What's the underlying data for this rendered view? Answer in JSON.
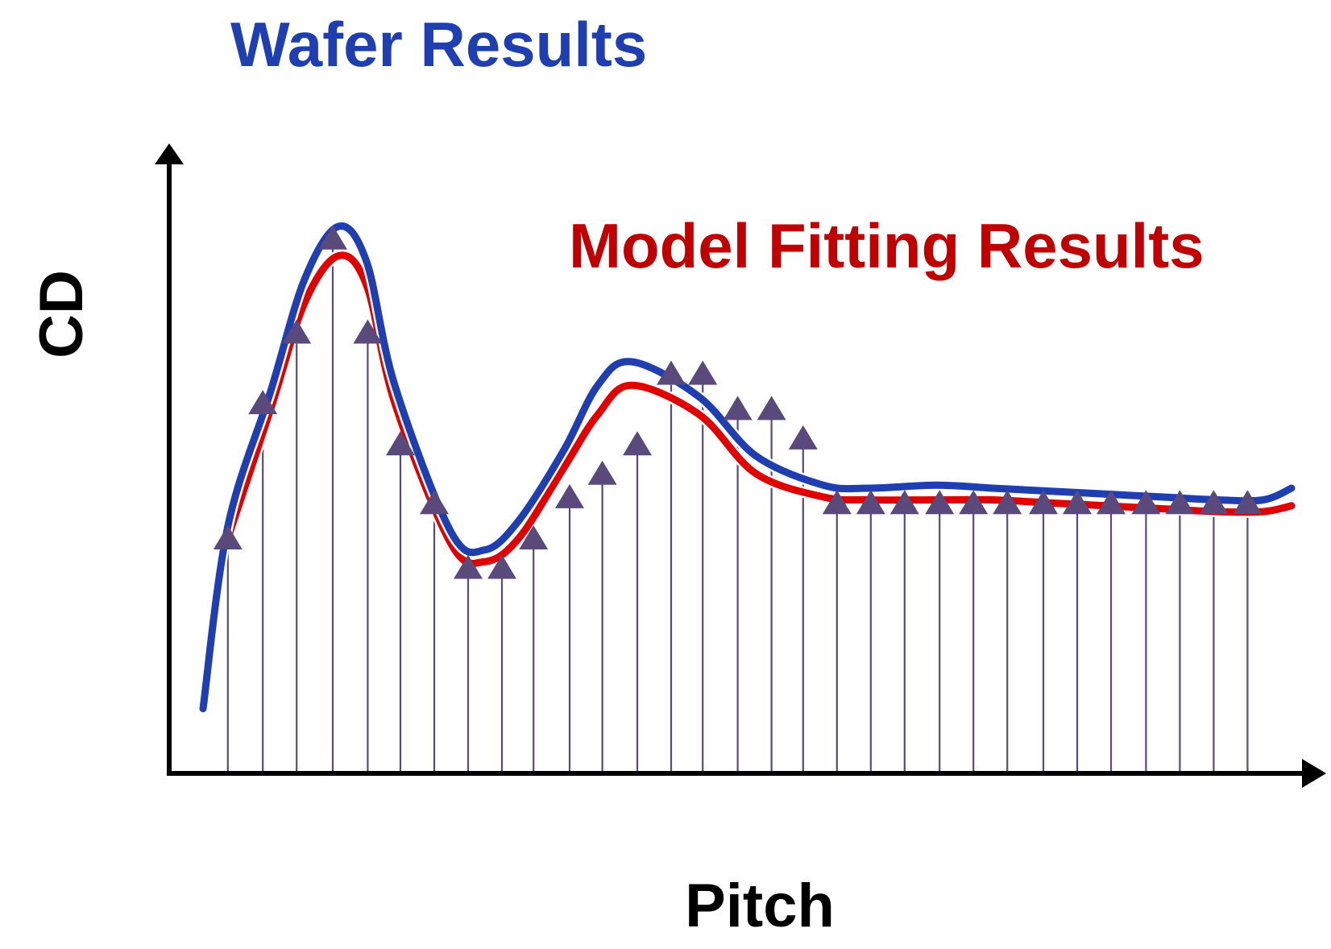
{
  "chart_data": {
    "type": "line",
    "xlabel": "Pitch",
    "ylabel": "CD",
    "x_axis_range": [
      0,
      100
    ],
    "y_axis_range": [
      0,
      100
    ],
    "ticks_shown": false,
    "grid": false,
    "legend": "inline-labels",
    "colors": {
      "wafer": "#1f3fb0",
      "model": "#e00000",
      "markers": "#5a4a7c",
      "axis": "#000000"
    },
    "series": [
      {
        "name": "Wafer Results",
        "kind": "line",
        "x": [
          3,
          5.2,
          9,
          12,
          15,
          17.5,
          20,
          25,
          28,
          31,
          35,
          38,
          41,
          47,
          52,
          58,
          62,
          68,
          73,
          78,
          83,
          88,
          93,
          97,
          99.5
        ],
        "y": [
          11,
          42,
          65,
          84,
          93,
          87,
          66,
          41,
          38,
          43,
          55,
          66,
          70,
          64,
          54,
          49,
          48.5,
          49,
          48.5,
          48,
          47.5,
          47,
          46.5,
          46.5,
          48.5
        ]
      },
      {
        "name": "Model Fitting Results",
        "kind": "line",
        "x": [
          5.2,
          9,
          12,
          15,
          17.5,
          20,
          25,
          28,
          31,
          35,
          38,
          41,
          47,
          52,
          58,
          62,
          68,
          73,
          78,
          83,
          88,
          93,
          97,
          99.5
        ],
        "y": [
          40,
          62,
          80,
          88,
          83,
          63,
          39,
          36,
          40,
          52,
          61,
          66,
          61,
          51,
          47,
          46.5,
          46.5,
          46.5,
          46,
          45.5,
          45,
          44.5,
          44.5,
          45.5
        ]
      },
      {
        "name": "",
        "kind": "markers",
        "x": [
          5.2,
          8.3,
          11.3,
          14.5,
          17.6,
          20.5,
          23.5,
          26.5,
          29.5,
          32.3,
          35.5,
          38.4,
          41.5,
          44.5,
          47.3,
          50.4,
          53.4,
          56.2,
          59.2,
          62.2,
          65.2,
          68.3,
          71.3,
          74.3,
          77.5,
          80.5,
          83.5,
          86.6,
          89.6,
          92.6,
          95.6
        ],
        "y": [
          40,
          63,
          75,
          91,
          75,
          56,
          46,
          35,
          35,
          40,
          47,
          51,
          56,
          68,
          68,
          62,
          62,
          57,
          46,
          46,
          46,
          46,
          46,
          46,
          46,
          46,
          46,
          46,
          46,
          46,
          46
        ]
      }
    ]
  }
}
